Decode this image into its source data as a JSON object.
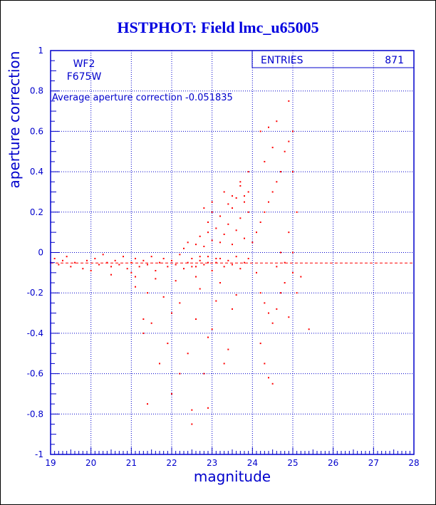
{
  "page": {
    "title": "HSTPHOT: Field lmc_u65005"
  },
  "stats_box": {
    "label": "ENTRIES",
    "value": "871"
  },
  "annotations": {
    "camera": "WF2",
    "filter": "F675W",
    "average_label": "Average aperture correction -0.051835"
  },
  "colors": {
    "title": "#0000e0",
    "axes": "#0000cc",
    "points": "#ff0000",
    "mean_line": "#ff0000",
    "grid": "#0000cc"
  },
  "chart_data": {
    "type": "scatter",
    "title": "HSTPHOT: Field lmc_u65005",
    "xlabel": "magnitude",
    "ylabel": "aperture correction",
    "xlim": [
      19,
      28
    ],
    "ylim": [
      -1,
      1
    ],
    "x_ticks": [
      "19",
      "20",
      "21",
      "22",
      "23",
      "24",
      "25",
      "26",
      "27",
      "28"
    ],
    "y_ticks": [
      "-1",
      "-0.8",
      "-0.6",
      "-0.4",
      "-0.2",
      "0",
      "0.2",
      "0.4",
      "0.6",
      "0.8",
      "1"
    ],
    "grid": true,
    "mean_line": -0.051835,
    "points": [
      [
        19.0,
        -0.05
      ],
      [
        19.1,
        -0.03
      ],
      [
        19.2,
        -0.06
      ],
      [
        19.3,
        -0.04
      ],
      [
        19.4,
        -0.02
      ],
      [
        19.5,
        -0.07
      ],
      [
        19.6,
        -0.05
      ],
      [
        19.8,
        -0.08
      ],
      [
        19.9,
        -0.04
      ],
      [
        20.0,
        -0.09
      ],
      [
        20.1,
        -0.03
      ],
      [
        20.2,
        -0.06
      ],
      [
        20.3,
        -0.01
      ],
      [
        20.4,
        -0.05
      ],
      [
        20.5,
        -0.07
      ],
      [
        20.6,
        -0.04
      ],
      [
        20.7,
        -0.06
      ],
      [
        20.8,
        -0.02
      ],
      [
        20.9,
        -0.08
      ],
      [
        21.0,
        -0.05
      ],
      [
        21.0,
        -0.1
      ],
      [
        21.1,
        -0.03
      ],
      [
        21.2,
        -0.07
      ],
      [
        21.3,
        -0.04
      ],
      [
        21.4,
        -0.06
      ],
      [
        21.5,
        -0.02
      ],
      [
        21.6,
        -0.09
      ],
      [
        21.7,
        -0.05
      ],
      [
        21.8,
        -0.03
      ],
      [
        21.9,
        -0.07
      ],
      [
        22.0,
        -0.04
      ],
      [
        22.1,
        -0.06
      ],
      [
        22.2,
        -0.01
      ],
      [
        22.3,
        -0.08
      ],
      [
        22.4,
        -0.05
      ],
      [
        22.5,
        -0.03
      ],
      [
        22.6,
        -0.07
      ],
      [
        22.7,
        -0.04
      ],
      [
        22.8,
        -0.06
      ],
      [
        22.9,
        -0.02
      ],
      [
        23.0,
        -0.09
      ],
      [
        23.1,
        -0.05
      ],
      [
        23.2,
        -0.03
      ],
      [
        23.3,
        -0.07
      ],
      [
        23.4,
        -0.04
      ],
      [
        23.5,
        -0.06
      ],
      [
        23.6,
        -0.02
      ],
      [
        23.7,
        -0.08
      ],
      [
        23.8,
        -0.05
      ],
      [
        23.9,
        -0.03
      ],
      [
        20.5,
        -0.11
      ],
      [
        21.1,
        -0.12
      ],
      [
        21.6,
        -0.13
      ],
      [
        22.1,
        -0.14
      ],
      [
        22.6,
        -0.12
      ],
      [
        23.2,
        -0.15
      ],
      [
        21.4,
        -0.2
      ],
      [
        21.8,
        -0.22
      ],
      [
        22.2,
        -0.25
      ],
      [
        22.7,
        -0.18
      ],
      [
        23.1,
        -0.24
      ],
      [
        23.6,
        -0.21
      ],
      [
        21.5,
        -0.35
      ],
      [
        22.0,
        -0.3
      ],
      [
        22.6,
        -0.33
      ],
      [
        23.0,
        -0.38
      ],
      [
        23.5,
        -0.28
      ],
      [
        21.3,
        -0.4
      ],
      [
        21.9,
        -0.45
      ],
      [
        22.4,
        -0.5
      ],
      [
        22.9,
        -0.42
      ],
      [
        23.4,
        -0.48
      ],
      [
        21.7,
        -0.55
      ],
      [
        22.2,
        -0.6
      ],
      [
        22.8,
        -0.6
      ],
      [
        23.3,
        -0.55
      ],
      [
        21.4,
        -0.75
      ],
      [
        22.0,
        -0.7
      ],
      [
        22.5,
        -0.78
      ],
      [
        22.9,
        -0.77
      ],
      [
        22.5,
        -0.85
      ],
      [
        21.1,
        -0.17
      ],
      [
        21.3,
        -0.33
      ],
      [
        22.3,
        0.02
      ],
      [
        22.4,
        0.05
      ],
      [
        22.6,
        0.04
      ],
      [
        22.7,
        0.08
      ],
      [
        22.8,
        0.03
      ],
      [
        22.9,
        0.1
      ],
      [
        23.0,
        0.06
      ],
      [
        23.1,
        0.12
      ],
      [
        23.2,
        0.05
      ],
      [
        23.3,
        0.09
      ],
      [
        23.4,
        0.14
      ],
      [
        23.5,
        0.04
      ],
      [
        23.6,
        0.11
      ],
      [
        23.7,
        0.17
      ],
      [
        23.8,
        0.07
      ],
      [
        23.9,
        0.2
      ],
      [
        22.9,
        0.15
      ],
      [
        23.2,
        0.18
      ],
      [
        23.5,
        0.22
      ],
      [
        23.8,
        0.25
      ],
      [
        23.9,
        0.3
      ],
      [
        23.6,
        0.27
      ],
      [
        23.4,
        0.24
      ],
      [
        23.0,
        0.2
      ],
      [
        23.7,
        0.35
      ],
      [
        23.9,
        0.4
      ],
      [
        23.7,
        0.33
      ],
      [
        23.5,
        0.28
      ],
      [
        24.0,
        0.05
      ],
      [
        24.1,
        0.1
      ],
      [
        24.2,
        0.15
      ],
      [
        24.3,
        0.2
      ],
      [
        24.4,
        0.25
      ],
      [
        24.5,
        0.3
      ],
      [
        24.6,
        0.35
      ],
      [
        24.7,
        0.4
      ],
      [
        24.8,
        0.5
      ],
      [
        24.9,
        0.55
      ],
      [
        24.2,
        0.6
      ],
      [
        24.4,
        0.62
      ],
      [
        24.6,
        0.65
      ],
      [
        25.0,
        0.6
      ],
      [
        24.9,
        0.75
      ],
      [
        24.3,
        0.45
      ],
      [
        24.5,
        0.52
      ],
      [
        24.1,
        -0.1
      ],
      [
        24.2,
        -0.2
      ],
      [
        24.3,
        -0.25
      ],
      [
        24.4,
        -0.3
      ],
      [
        24.5,
        -0.35
      ],
      [
        24.6,
        -0.28
      ],
      [
        24.7,
        -0.2
      ],
      [
        24.8,
        -0.15
      ],
      [
        24.9,
        -0.32
      ],
      [
        25.0,
        -0.1
      ],
      [
        25.1,
        -0.2
      ],
      [
        25.2,
        -0.12
      ],
      [
        25.4,
        -0.38
      ],
      [
        24.3,
        -0.55
      ],
      [
        24.4,
        -0.62
      ],
      [
        24.5,
        -0.65
      ],
      [
        24.2,
        -0.45
      ],
      [
        25.0,
        0.4
      ],
      [
        25.1,
        0.2
      ],
      [
        25.0,
        0.0
      ],
      [
        24.7,
        0.0
      ],
      [
        24.8,
        -0.05
      ],
      [
        24.6,
        -0.07
      ],
      [
        24.9,
        0.1
      ],
      [
        23.0,
        0.25
      ],
      [
        22.8,
        0.22
      ],
      [
        23.3,
        0.3
      ],
      [
        23.8,
        0.28
      ],
      [
        22.7,
        -0.02
      ],
      [
        22.9,
        -0.05
      ],
      [
        23.1,
        -0.03
      ],
      [
        22.5,
        -0.07
      ]
    ]
  }
}
